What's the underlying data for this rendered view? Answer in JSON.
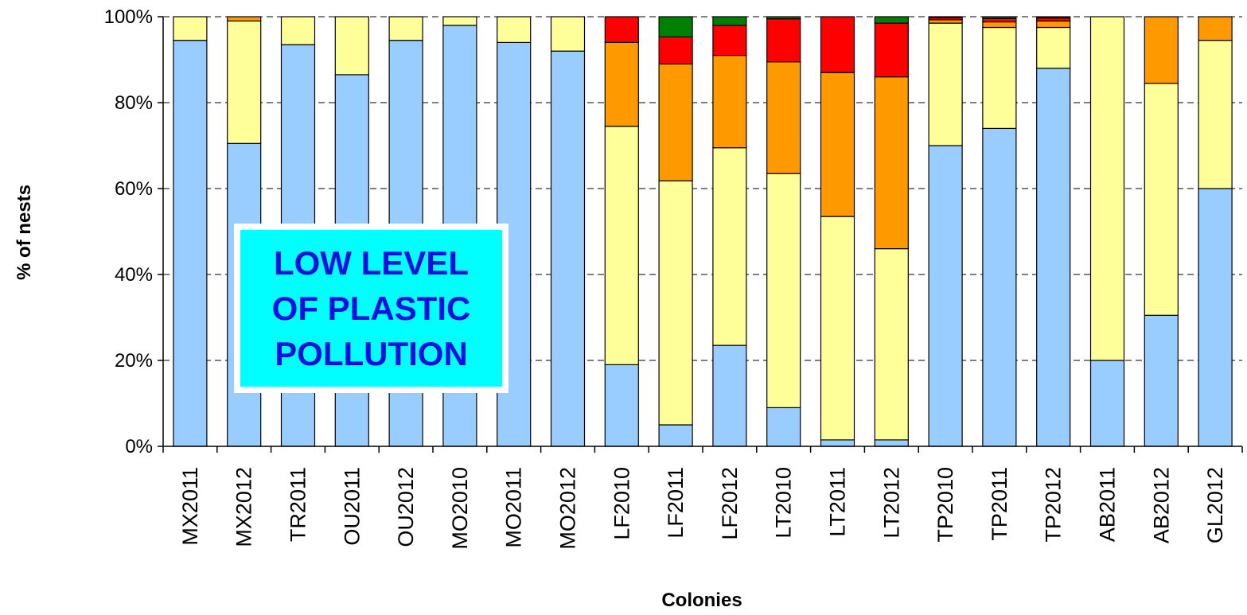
{
  "chart_data": {
    "type": "bar",
    "stacked": true,
    "percent": true,
    "categories": [
      "MX2011",
      "MX2012",
      "TR2011",
      "OU2011",
      "OU2012",
      "MO2010",
      "MO2011",
      "MO2012",
      "LF2010",
      "LF2011",
      "LF2012",
      "LT2010",
      "LT2011",
      "LT2012",
      "TP2010",
      "TP2011",
      "TP2012",
      "AB2011",
      "AB2012",
      "GL2012"
    ],
    "series": [
      {
        "color": "#99ccff",
        "values": [
          94.5,
          70.5,
          93.5,
          86.5,
          94.5,
          98,
          94,
          92,
          19,
          5,
          23.5,
          9,
          1.5,
          1.5,
          70,
          74,
          88,
          20,
          30.5,
          60
        ]
      },
      {
        "color": "#ffff99",
        "values": [
          5.5,
          28.5,
          6.5,
          13.5,
          5.5,
          2,
          6,
          8,
          55.5,
          56.8,
          46,
          54.5,
          52,
          44.5,
          28.5,
          23.5,
          9.5,
          80,
          54,
          34.5
        ]
      },
      {
        "color": "#ff9900",
        "values": [
          0,
          1,
          0,
          0,
          0,
          0,
          0,
          0,
          19.5,
          27.2,
          21.5,
          26,
          33.5,
          40,
          0.8,
          1.3,
          1.5,
          0,
          15.5,
          5.5
        ]
      },
      {
        "color": "#ff0000",
        "values": [
          0,
          0,
          0,
          0,
          0,
          0,
          0,
          0,
          6,
          6.3,
          7,
          10,
          13,
          12.5,
          0.5,
          0.8,
          0.7,
          0,
          0,
          0
        ]
      },
      {
        "color": "#008000",
        "values": [
          0,
          0,
          0,
          0,
          0,
          0,
          0,
          0,
          0,
          4.7,
          2,
          0.5,
          0,
          1.5,
          0.2,
          0.4,
          0.3,
          0,
          0,
          0
        ]
      }
    ],
    "ylim": [
      0,
      100
    ],
    "yticks": [
      "0%",
      "20%",
      "40%",
      "60%",
      "80%",
      "100%"
    ],
    "ylabel": "% of nests",
    "xlabel": "Colonies",
    "grid": "horizontal dashed",
    "annotation": "LOW LEVEL\nOF PLASTIC\nPOLLUTION"
  }
}
